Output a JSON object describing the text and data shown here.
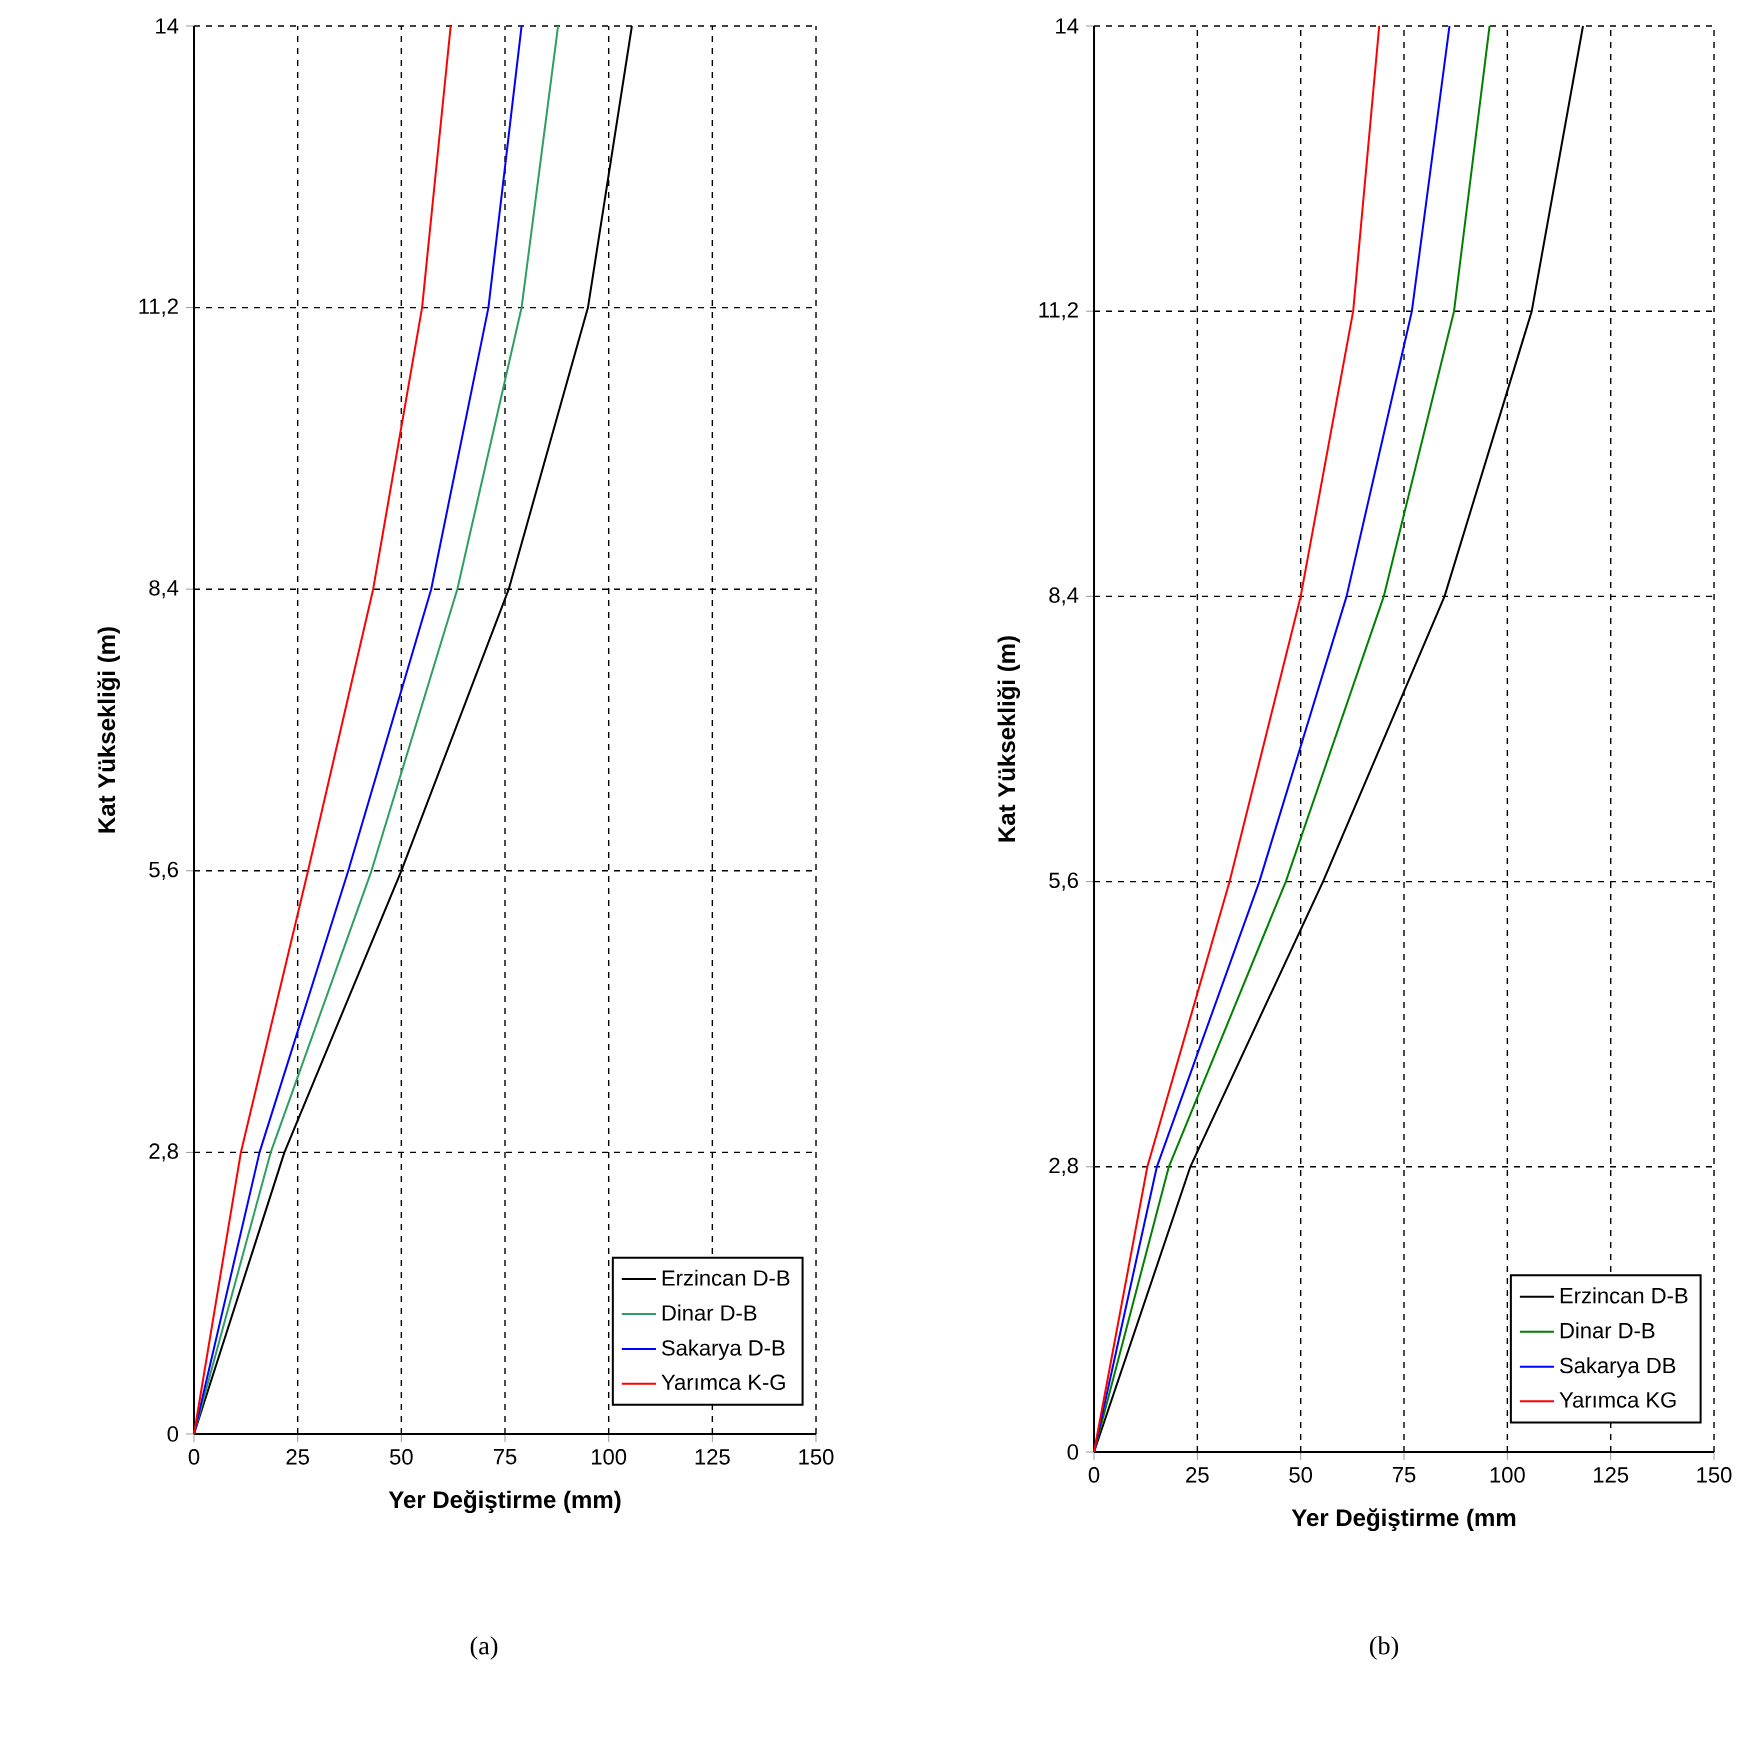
{
  "chart_data": [
    {
      "type": "line",
      "xlabel": "Yer Değiştirme (mm)",
      "ylabel": "Kat Yüksekliği (m)",
      "xlim": [
        0,
        150
      ],
      "ylim": [
        0,
        14
      ],
      "xticks": [
        0,
        25,
        50,
        75,
        100,
        125,
        150
      ],
      "yticks": [
        0,
        {
          "value": 2.8,
          "label": "2,8"
        },
        {
          "value": 5.6,
          "label": "5,6"
        },
        {
          "value": 8.4,
          "label": "8,4"
        },
        {
          "value": 11.2,
          "label": "11,2"
        },
        14
      ],
      "grid": true,
      "legend": "bottom right",
      "annotations": [
        "(a)"
      ],
      "series": [
        {
          "name": "Erzincan D-B",
          "color": "#000000",
          "x": [
            0,
            21.8,
            50,
            75.9,
            95,
            105.6
          ],
          "values": [
            0,
            2.8,
            5.6,
            8.4,
            11.2,
            14
          ]
        },
        {
          "name": "Dinar D-B",
          "color": "#2e9e62",
          "x": [
            0,
            18.5,
            42.8,
            63.5,
            79,
            87.8
          ],
          "values": [
            0,
            2.8,
            5.6,
            8.4,
            11.2,
            14
          ]
        },
        {
          "name": "Sakarya D-B",
          "color": "#0000ff",
          "x": [
            0,
            15.8,
            37.2,
            57.2,
            71,
            79
          ],
          "values": [
            0,
            2.8,
            5.6,
            8.4,
            11.2,
            14
          ]
        },
        {
          "name": "Yarımca K-G",
          "color": "#ff0000",
          "x": [
            0,
            11.3,
            27.5,
            43.2,
            55,
            61.9
          ],
          "values": [
            0,
            2.8,
            5.6,
            8.4,
            11.2,
            14
          ]
        }
      ]
    },
    {
      "type": "line",
      "xlabel": "Yer Değiştirme (mm",
      "ylabel": "Kat Yüksekliği (m)",
      "xlim": [
        0,
        150
      ],
      "ylim": [
        0,
        14
      ],
      "xticks": [
        0,
        25,
        50,
        75,
        100,
        125,
        150
      ],
      "yticks": [
        0,
        {
          "value": 2.8,
          "label": "2,8"
        },
        {
          "value": 5.6,
          "label": "5,6"
        },
        {
          "value": 8.4,
          "label": "8,4"
        },
        {
          "value": 11.2,
          "label": "11,2"
        },
        14
      ],
      "grid": true,
      "legend": "bottom right",
      "annotations": [
        "(b)"
      ],
      "series": [
        {
          "name": "Erzincan D-B",
          "color": "#000000",
          "x": [
            0,
            23.3,
            55.4,
            84.8,
            105.9,
            118.3
          ],
          "values": [
            0,
            2.8,
            5.6,
            8.4,
            11.2,
            14
          ]
        },
        {
          "name": "Dinar D-B",
          "color": "#008000",
          "x": [
            0,
            18.1,
            46.4,
            70.1,
            87.1,
            95.7
          ],
          "values": [
            0,
            2.8,
            5.6,
            8.4,
            11.2,
            14
          ]
        },
        {
          "name": "Sakarya  DB",
          "color": "#0000ff",
          "x": [
            0,
            15.2,
            40,
            61.1,
            76.9,
            86
          ],
          "values": [
            0,
            2.8,
            5.6,
            8.4,
            11.2,
            14
          ]
        },
        {
          "name": "Yarımca  KG",
          "color": "#ff0000",
          "x": [
            0,
            12.9,
            32.8,
            50,
            62.7,
            69
          ],
          "values": [
            0,
            2.8,
            5.6,
            8.4,
            11.2,
            14
          ]
        }
      ]
    }
  ]
}
